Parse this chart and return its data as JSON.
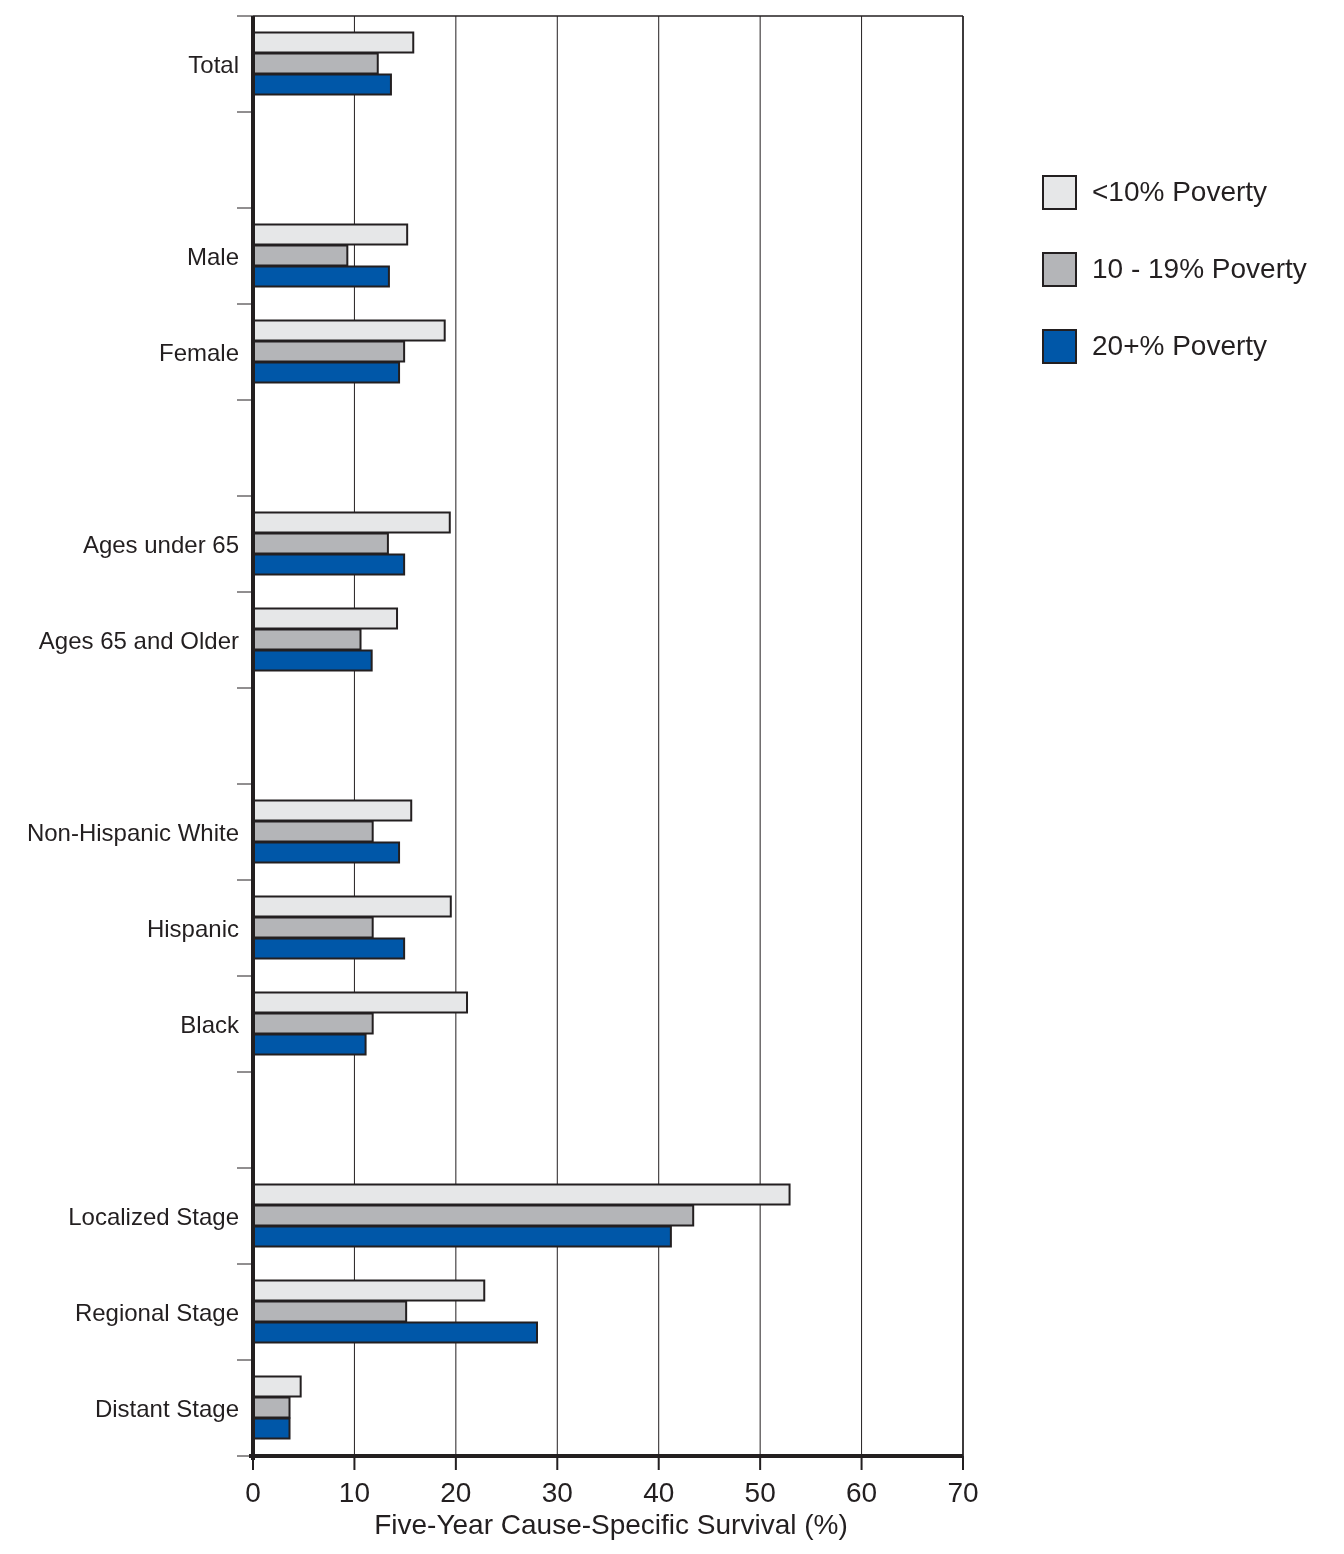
{
  "chart_data": {
    "type": "bar",
    "orientation": "horizontal",
    "xlabel": "Five-Year Cause-Specific Survival (%)",
    "categories": [
      "Total",
      null,
      "Male",
      "Female",
      null,
      "Ages under 65",
      "Ages 65 and Older",
      null,
      "Non-Hispanic White",
      "Hispanic",
      "Black",
      null,
      "Localized Stage",
      "Regional Stage",
      "Distant Stage"
    ],
    "series": [
      {
        "name": "<10% Poverty",
        "color": "#e6e7e8",
        "values": [
          15.8,
          null,
          15.2,
          18.9,
          null,
          19.4,
          14.2,
          null,
          15.6,
          19.5,
          21.1,
          null,
          52.9,
          22.8,
          4.7
        ]
      },
      {
        "name": "10 - 19% Poverty",
        "color": "#b4b5b8",
        "values": [
          12.3,
          null,
          9.3,
          14.9,
          null,
          13.3,
          10.6,
          null,
          11.8,
          11.8,
          11.8,
          null,
          43.4,
          15.1,
          3.6
        ]
      },
      {
        "name": "20+% Poverty",
        "color": "#0057a8",
        "values": [
          13.6,
          null,
          13.4,
          14.4,
          null,
          14.9,
          11.7,
          null,
          14.4,
          14.9,
          11.1,
          null,
          41.2,
          28.0,
          3.6
        ]
      }
    ],
    "xlim": [
      0,
      70
    ],
    "xticks": [
      0,
      10,
      20,
      30,
      40,
      50,
      60,
      70
    ],
    "grid": "x",
    "legend": "right"
  }
}
